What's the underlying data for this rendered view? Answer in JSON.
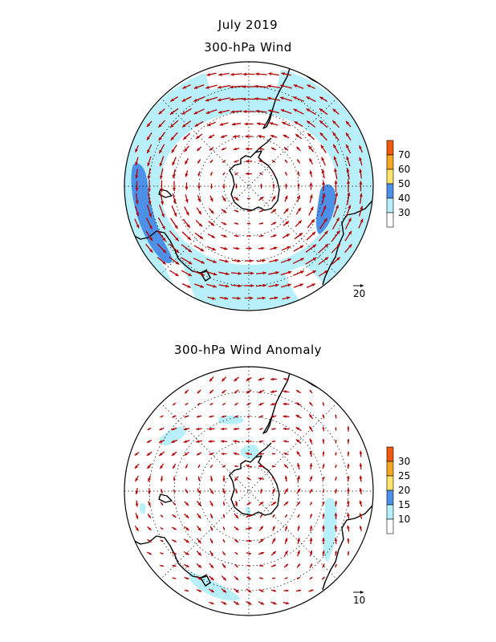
{
  "titles": {
    "date": "July 2019",
    "top_map": "300-hPa Wind",
    "bottom_map": "300-hPa Wind Anomaly"
  },
  "maps": [
    {
      "name": "wind",
      "colorbar_ticks": [
        "30",
        "40",
        "50",
        "60",
        "70"
      ],
      "colorbar_colors": [
        "#ffffff",
        "#b7f0fa",
        "#4d90e8",
        "#ffe36b",
        "#f5a623",
        "#ef5a0f"
      ],
      "reference_vector_label": "20"
    },
    {
      "name": "anomaly",
      "colorbar_ticks": [
        "10",
        "15",
        "20",
        "25",
        "30"
      ],
      "colorbar_colors": [
        "#ffffff",
        "#b7f0fa",
        "#4d90e8",
        "#ffe36b",
        "#f5a623",
        "#ef5a0f"
      ],
      "reference_vector_label": "10"
    }
  ],
  "colors": {
    "arrow": "#b40000",
    "shade_light": "#b7f0fa",
    "shade_dark": "#4d90e8",
    "coast": "#000000"
  }
}
